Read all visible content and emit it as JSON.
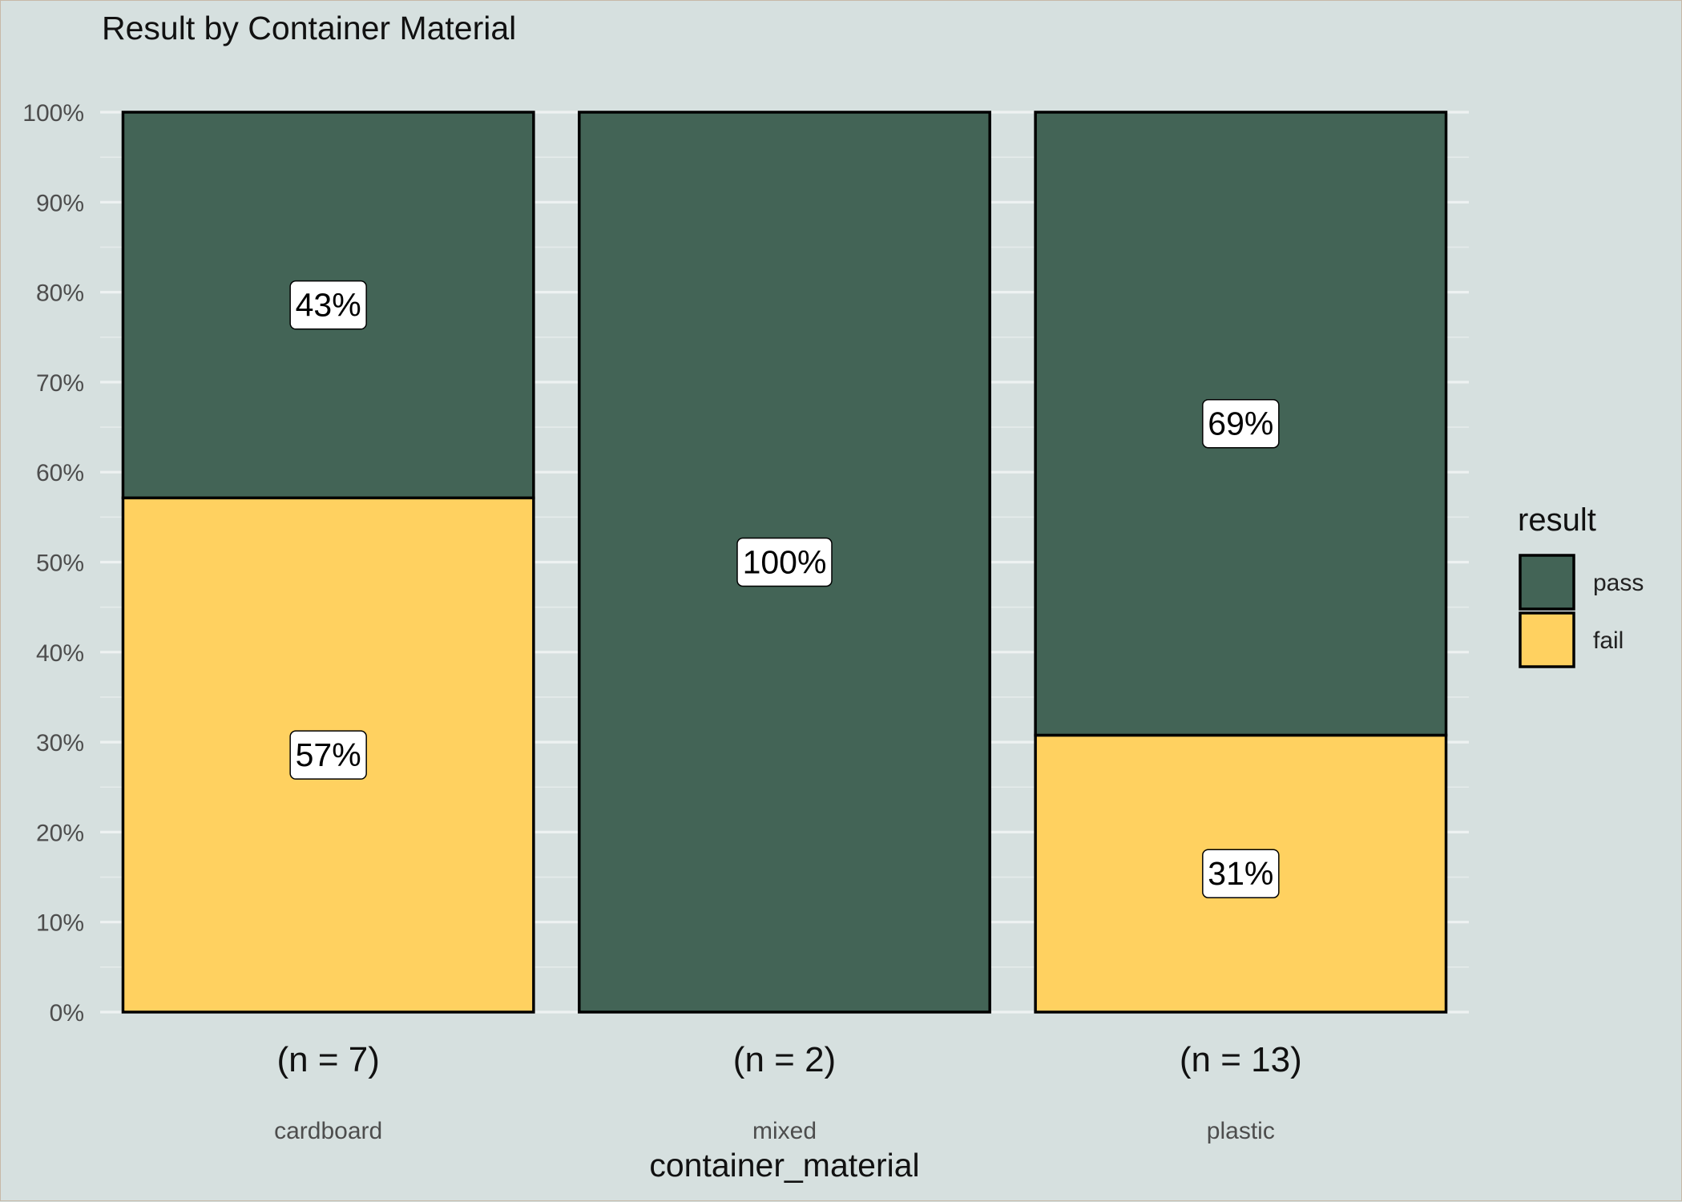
{
  "chart_data": {
    "type": "bar",
    "stacked": true,
    "title": "Result by Container Material",
    "xlabel": "container_material",
    "ylabel": "",
    "ylim": [
      0,
      100
    ],
    "y_ticks": [
      "0%",
      "10%",
      "20%",
      "30%",
      "40%",
      "50%",
      "60%",
      "70%",
      "80%",
      "90%",
      "100%"
    ],
    "categories": [
      "cardboard",
      "mixed",
      "plastic"
    ],
    "counts": [
      "(n = 7)",
      "(n = 2)",
      "(n = 13)"
    ],
    "series": [
      {
        "name": "fail",
        "color": "#ffd160",
        "values": [
          57.14,
          0,
          30.77
        ],
        "labels": [
          "57%",
          "",
          "31%"
        ]
      },
      {
        "name": "pass",
        "color": "#436456",
        "values": [
          42.86,
          100,
          69.23
        ],
        "labels": [
          "43%",
          "100%",
          "69%"
        ]
      }
    ],
    "legend": {
      "title": "result",
      "position": "right",
      "entries": [
        {
          "name": "pass",
          "color": "#436456"
        },
        {
          "name": "fail",
          "color": "#ffd160"
        }
      ]
    },
    "grid": true,
    "background_color": "#d6e0df"
  }
}
